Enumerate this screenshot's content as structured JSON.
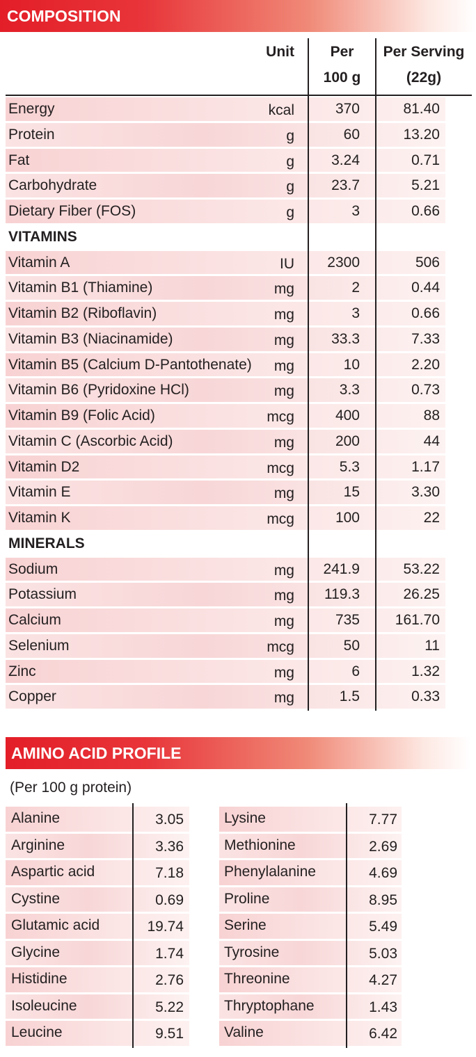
{
  "composition": {
    "title": "COMPOSITION",
    "header": {
      "unit": "Unit",
      "per100": [
        "Per",
        "100 g"
      ],
      "serving": [
        "Per Serving",
        "(22g)"
      ]
    },
    "rows": [
      [
        "Energy",
        "kcal",
        "370",
        "81.40"
      ],
      [
        "Protein",
        "g",
        "60",
        "13.20"
      ],
      [
        "Fat",
        "g",
        "3.24",
        "0.71"
      ],
      [
        "Carbohydrate",
        "g",
        "23.7",
        "5.21"
      ],
      [
        "Dietary Fiber (FOS)",
        "g",
        "3",
        "0.66"
      ],
      [
        "VITAMINS"
      ],
      [
        "Vitamin A",
        "IU",
        "2300",
        "506"
      ],
      [
        "Vitamin B1 (Thiamine)",
        "mg",
        "2",
        "0.44"
      ],
      [
        "Vitamin B2 (Riboflavin)",
        "mg",
        "3",
        "0.66"
      ],
      [
        "Vitamin B3 (Niacinamide)",
        "mg",
        "33.3",
        "7.33"
      ],
      [
        "Vitamin B5 (Calcium D-Pantothenate)",
        "mg",
        "10",
        "2.20"
      ],
      [
        "Vitamin B6 (Pyridoxine HCl)",
        "mg",
        "3.3",
        "0.73"
      ],
      [
        "Vitamin B9 (Folic Acid)",
        "mcg",
        "400",
        "88"
      ],
      [
        "Vitamin C (Ascorbic Acid)",
        "mg",
        "200",
        "44"
      ],
      [
        "Vitamin D2",
        "mcg",
        "5.3",
        "1.17"
      ],
      [
        "Vitamin E",
        "mg",
        "15",
        "3.30"
      ],
      [
        "Vitamin K",
        "mcg",
        "100",
        "22"
      ],
      [
        "MINERALS"
      ],
      [
        "Sodium",
        "mg",
        "241.9",
        "53.22"
      ],
      [
        "Potassium",
        "mg",
        "119.3",
        "26.25"
      ],
      [
        "Calcium",
        "mg",
        "735",
        "161.70"
      ],
      [
        "Selenium",
        "mcg",
        "50",
        "11"
      ],
      [
        "Zinc",
        "mg",
        "6",
        "1.32"
      ],
      [
        "Copper",
        "mg",
        "1.5",
        "0.33"
      ]
    ]
  },
  "amino": {
    "title": "AMINO ACID PROFILE",
    "note": "(Per 100 g protein)",
    "left": [
      [
        "Alanine",
        "3.05"
      ],
      [
        "Arginine",
        "3.36"
      ],
      [
        "Aspartic acid",
        "7.18"
      ],
      [
        "Cystine",
        "0.69"
      ],
      [
        "Glutamic acid",
        "19.74"
      ],
      [
        "Glycine",
        "1.74"
      ],
      [
        "Histidine",
        "2.76"
      ],
      [
        "Isoleucine",
        "5.22"
      ],
      [
        "Leucine",
        "9.51"
      ]
    ],
    "right": [
      [
        "Lysine",
        "7.77"
      ],
      [
        "Methionine",
        "2.69"
      ],
      [
        "Phenylalanine",
        "4.69"
      ],
      [
        "Proline",
        "8.95"
      ],
      [
        "Serine",
        "5.49"
      ],
      [
        "Tyrosine",
        "5.03"
      ],
      [
        "Threonine",
        "4.27"
      ],
      [
        "Thryptophane",
        "1.43"
      ],
      [
        "Valine",
        "6.42"
      ]
    ]
  }
}
